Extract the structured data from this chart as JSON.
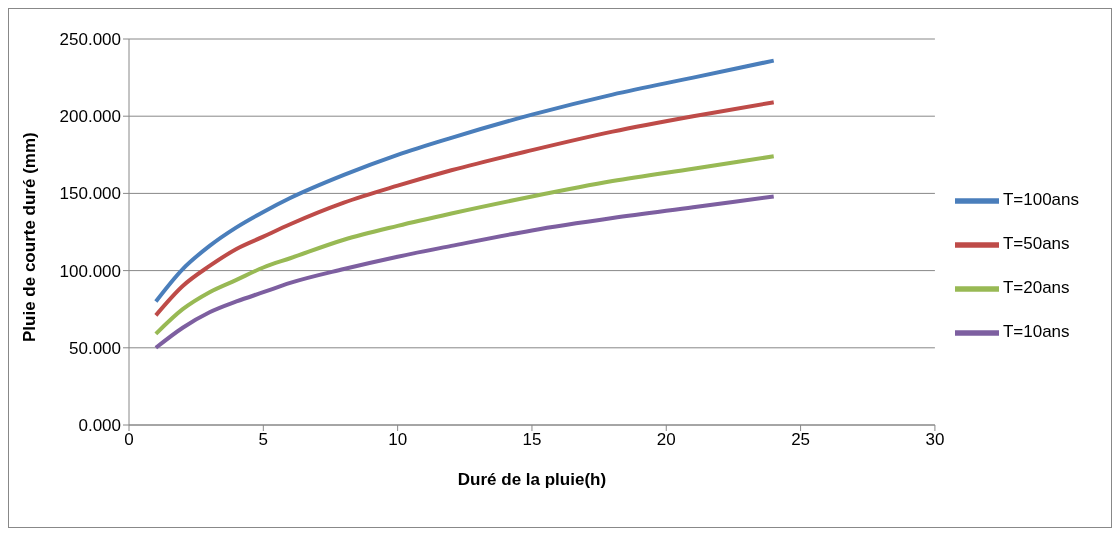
{
  "chart_data": {
    "type": "line",
    "xlabel": "Duré de la pluie(h)",
    "ylabel": "Pluie de courte duré (mm)",
    "x": [
      1,
      2,
      3,
      4,
      5,
      6,
      8,
      10,
      12,
      15,
      18,
      21,
      24
    ],
    "series": [
      {
        "name": "T=100ans",
        "color": "#4a7ebb",
        "values": [
          80,
          101,
          116,
          128,
          138,
          147,
          162,
          175,
          186,
          201,
          214,
          225,
          236
        ]
      },
      {
        "name": "T=50ans",
        "color": "#be4b48",
        "values": [
          71,
          90,
          103,
          114,
          122,
          130,
          144,
          155,
          165,
          178,
          190,
          200,
          209
        ]
      },
      {
        "name": "T=20ans",
        "color": "#98b954",
        "values": [
          59,
          75,
          86,
          94,
          102,
          108,
          120,
          129,
          137,
          148,
          158,
          166,
          174
        ]
      },
      {
        "name": "T=10ans",
        "color": "#7d5fa0",
        "values": [
          50,
          63,
          73,
          80,
          86,
          92,
          101,
          109,
          116,
          126,
          134,
          141,
          148
        ]
      }
    ],
    "xlim": [
      0,
      30
    ],
    "xticks": [
      0,
      5,
      10,
      15,
      20,
      25,
      30
    ],
    "ylim": [
      0,
      250
    ],
    "yticks": [
      {
        "value": 0,
        "label": "0.000"
      },
      {
        "value": 50,
        "label": "50.000"
      },
      {
        "value": 100,
        "label": "100.000"
      },
      {
        "value": 150,
        "label": "150.000"
      },
      {
        "value": 200,
        "label": "200.000"
      },
      {
        "value": 250,
        "label": "250.000"
      }
    ],
    "grid": "y",
    "legend": "right",
    "marker": "none",
    "line_style": "solid"
  }
}
